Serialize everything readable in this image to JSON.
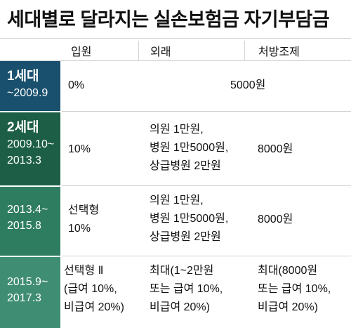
{
  "title": "세대별로 달라지는 실손보험금 자기부담금",
  "columns": [
    "입원",
    "외래",
    "처방조제"
  ],
  "rows": [
    {
      "generation": "1세대",
      "period": "~2009.9",
      "inpatient": [
        "0%"
      ],
      "merged": "5000원",
      "color": "#19506e"
    },
    {
      "generation": "2세대",
      "period": [
        "2009.10~",
        "2013.3"
      ],
      "inpatient": [
        "10%"
      ],
      "outpatient": [
        "의원 1만원,",
        "병원 1만5000원,",
        "상급병원 2만원"
      ],
      "prescription": [
        "8000원"
      ],
      "color": "#1d5f46"
    },
    {
      "period": [
        "2013.4~",
        "2015.8"
      ],
      "inpatient": [
        "선택형",
        "10%"
      ],
      "outpatient": [
        "의원 1만원,",
        "병원 1만5000원,",
        "상급병원 2만원"
      ],
      "prescription": [
        "8000원"
      ],
      "color": "#2f7d61"
    },
    {
      "period": [
        "2015.9~",
        "2017.3"
      ],
      "inpatient": [
        "선택형 Ⅱ",
        "(급여 10%,",
        "비급여 20%)"
      ],
      "outpatient": [
        "최대(1~2만원",
        "또는 급여 10%,",
        "비급여 20%)"
      ],
      "prescription": [
        "최대(8000원",
        "또는 급여 10%,",
        "비급여 20%)"
      ],
      "color": "#3f8d72"
    }
  ]
}
